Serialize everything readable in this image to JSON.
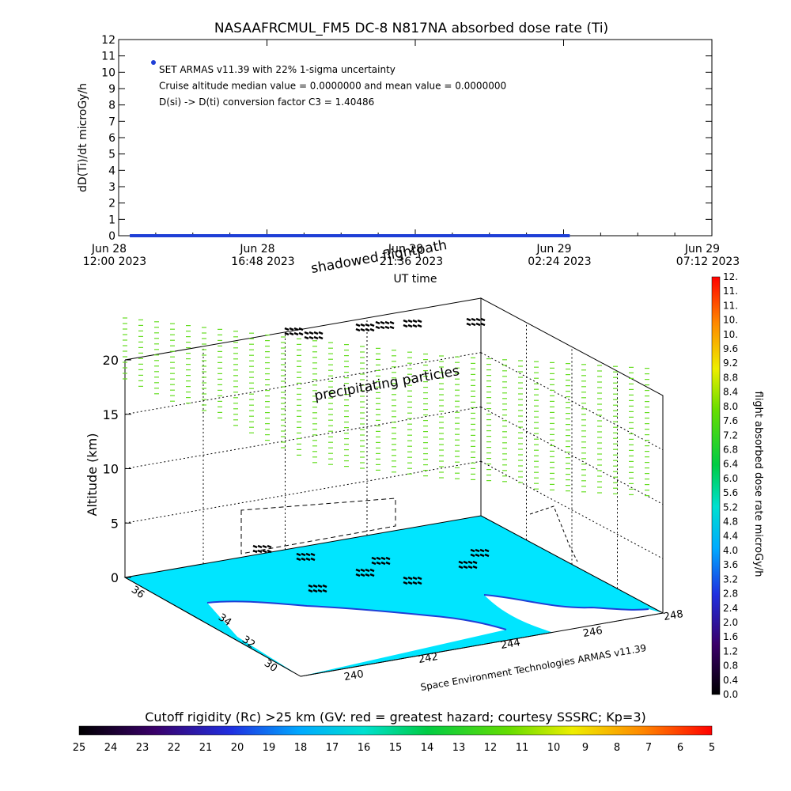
{
  "chart_data": [
    {
      "type": "line",
      "title": "NASAAFRCMUL_FM5 DC-8   N817NA absorbed dose rate (Ti)",
      "ylabel": "dD(Ti)/dt microGy/h",
      "xlabel": "UT time",
      "ylim": [
        0,
        12
      ],
      "yticks": [
        "0",
        "1",
        "2",
        "3",
        "4",
        "5",
        "6",
        "7",
        "8",
        "9",
        "10",
        "11",
        "12"
      ],
      "xticks": [
        {
          "top": "Jun 28",
          "bottom": "12:00 2023"
        },
        {
          "top": "Jun 28",
          "bottom": "16:48 2023"
        },
        {
          "top": "Jun 28",
          "bottom": "21:36 2023"
        },
        {
          "top": "Jun 29",
          "bottom": "02:24 2023"
        },
        {
          "top": "Jun 29",
          "bottom": "07:12 2023"
        }
      ],
      "annotations": [
        "SET ARMAS v11.39 with 22% 1-sigma uncertainty",
        "Cruise altitude median value = 0.0000000 and mean value = 0.0000000",
        "D(si) -> D(ti) conversion factor C3 = 1.40486"
      ],
      "series": [
        {
          "color": "#1f3fd6",
          "marker_value": 10.5,
          "x_start": "Jun 28 13:00 2023",
          "x_end": "Jun 29 02:36 2023",
          "values": [
            0,
            0
          ]
        }
      ]
    },
    {
      "type": "scatter",
      "ylabel": "Altitude (km)",
      "zticks": [
        "0",
        "5",
        "10",
        "15",
        "20"
      ],
      "lat_ticks": [
        "30",
        "32",
        "34",
        "36"
      ],
      "lon_ticks": [
        "240",
        "242",
        "244",
        "246",
        "248"
      ],
      "labels": {
        "shadowed": "shadowed flightpath",
        "precipitating": "precipitating particles",
        "credit": "Space Environment Technologies ARMAS v11.39"
      },
      "colors": {
        "ocean": "#00e5ff",
        "land": "#ffffff",
        "particles": "#66dd22",
        "coast": "#1f3fd6"
      }
    }
  ],
  "colorbar_right": {
    "label": "flight absorbed dose rate microGy/h",
    "ticks": [
      "0.0",
      "0.4",
      "0.8",
      "1.2",
      "1.6",
      "2.0",
      "2.4",
      "2.8",
      "3.2",
      "3.6",
      "4.0",
      "4.4",
      "4.8",
      "5.2",
      "5.6",
      "6.0",
      "6.4",
      "6.8",
      "7.2",
      "7.6",
      "8.0",
      "8.4",
      "8.8",
      "9.2",
      "9.6",
      "10.",
      "10.",
      "11.",
      "11.",
      "12."
    ]
  },
  "colorbar_bottom": {
    "label": "Cutoff rigidity (Rc) >25 km (GV: red = greatest hazard; courtesy SSSRC; Kp=3)",
    "ticks": [
      "25",
      "24",
      "23",
      "22",
      "21",
      "20",
      "19",
      "18",
      "17",
      "16",
      "15",
      "14",
      "13",
      "12",
      "11",
      "10",
      "9",
      "8",
      "7",
      "6",
      "5"
    ]
  }
}
